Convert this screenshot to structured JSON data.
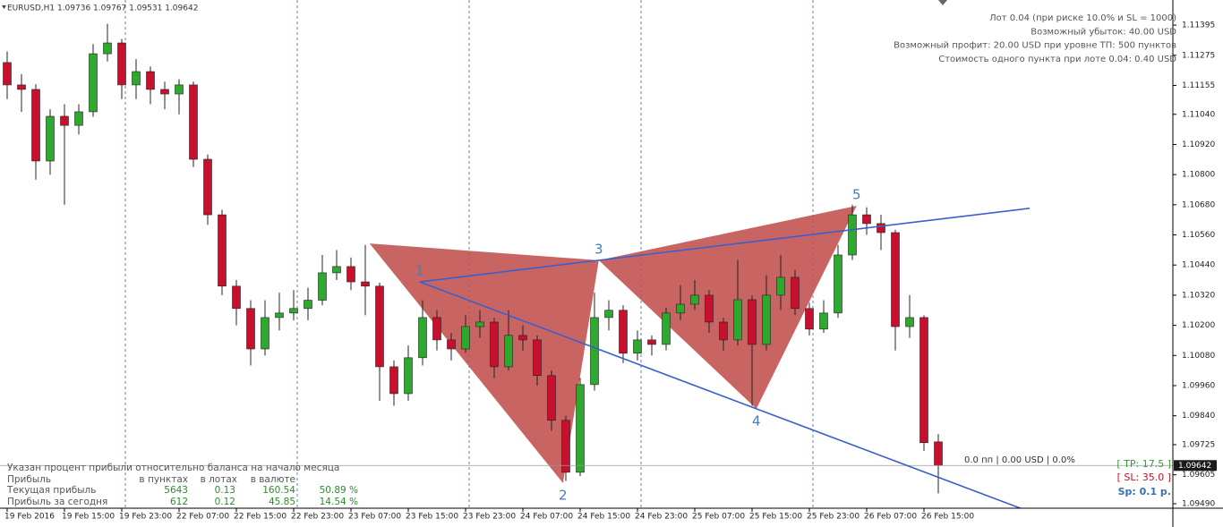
{
  "header": "EURUSD,H1  1.09736 1.09767 1.09531 1.09642",
  "info": [
    "Лот 0.04 (при риске 10.0% и SL = 1000)",
    "Возможный убыток: 40.00 USD",
    "Возможный профит: 20.00 USD при уровне ТП: 500 пунктов",
    "Стоимость одного пункта при лоте 0.04: 0.40 USD"
  ],
  "position_status": "0.0 пп | 0.00 USD | 0.0%",
  "tp_label": "[ TP: 17.5 ]",
  "sl_label": "[ SL: 35.0 ]",
  "spread_label": "Sp: 0.1 p.",
  "table": {
    "note": "Указан процент прибыли относительно баланса на начало месяца",
    "header": [
      "Прибыль",
      "в пунктах",
      "в лотах",
      "в валюте"
    ],
    "rows": [
      [
        "Текущая прибыль",
        5643,
        0.13,
        160.54,
        "50.89 %"
      ],
      [
        "Прибыль за сегодня",
        612,
        0.12,
        45.85,
        "14.54 %"
      ]
    ]
  },
  "chart_data": {
    "type": "candlestick",
    "up_color": "#2ea82e",
    "down_color": "#c8102e",
    "ylim": [
      1.09472,
      1.11495
    ],
    "yticks": [
      1.11395,
      1.11275,
      1.11155,
      {
        "value": 1.1104,
        "label": "1.11040"
      },
      {
        "value": 1.1092,
        "label": "1.10920"
      },
      {
        "value": 1.108,
        "label": "1.10800"
      },
      {
        "value": 1.1068,
        "label": "1.10680"
      },
      {
        "value": 1.1056,
        "label": "1.10560"
      },
      {
        "value": 1.1044,
        "label": "1.10440"
      },
      {
        "value": 1.1032,
        "label": "1.10320"
      },
      {
        "value": 1.102,
        "label": "1.10200"
      },
      {
        "value": 1.1008,
        "label": "1.10080"
      },
      {
        "value": 1.0996,
        "label": "1.09960"
      },
      {
        "value": 1.0984,
        "label": "1.09840"
      },
      1.09725,
      1.09605,
      {
        "value": 1.0949,
        "label": "1.09490"
      }
    ],
    "xticks": [
      {
        "value": 0,
        "label": "19 Feb 2016"
      },
      {
        "value": 4,
        "label": "19 Feb 15:00"
      },
      {
        "value": 8,
        "label": "19 Feb 23:00"
      },
      {
        "value": 12,
        "label": "22 Feb 07:00"
      },
      {
        "value": 16,
        "label": "22 Feb 15:00"
      },
      {
        "value": 20,
        "label": "22 Feb 23:00"
      },
      {
        "value": 24,
        "label": "23 Feb 07:00"
      },
      {
        "value": 28,
        "label": "23 Feb 15:00"
      },
      {
        "value": 32,
        "label": "23 Feb 23:00"
      },
      {
        "value": 36,
        "label": "24 Feb 07:00"
      },
      {
        "value": 40,
        "label": "24 Feb 15:00"
      },
      {
        "value": 44,
        "label": "24 Feb 23:00"
      },
      {
        "value": 48,
        "label": "25 Feb 07:00"
      },
      {
        "value": 52,
        "label": "25 Feb 15:00"
      },
      {
        "value": 56,
        "label": "25 Feb 23:00"
      },
      {
        "value": 60,
        "label": "26 Feb 07:00"
      },
      {
        "value": 64,
        "label": "26 Feb 15:00"
      }
    ],
    "last_price": 1.09642,
    "candles": [
      [
        1.11246,
        1.1129,
        1.111,
        1.11157
      ],
      [
        1.11157,
        1.112,
        1.1105,
        1.11139
      ],
      [
        1.11139,
        1.1116,
        1.1078,
        1.10854
      ],
      [
        1.10854,
        1.1106,
        1.108,
        1.11032
      ],
      [
        1.11032,
        1.1108,
        1.1068,
        1.10996
      ],
      [
        1.10996,
        1.1108,
        1.1096,
        1.1105
      ],
      [
        1.1105,
        1.1132,
        1.1103,
        1.11281
      ],
      [
        1.11281,
        1.114,
        1.1125,
        1.11324
      ],
      [
        1.11324,
        1.1134,
        1.111,
        1.11157
      ],
      [
        1.11157,
        1.1126,
        1.111,
        1.1121
      ],
      [
        1.1121,
        1.1123,
        1.1108,
        1.11139
      ],
      [
        1.11139,
        1.1117,
        1.1106,
        1.11121
      ],
      [
        1.11121,
        1.1118,
        1.1104,
        1.11157
      ],
      [
        1.11157,
        1.1117,
        1.1083,
        1.10861
      ],
      [
        1.10861,
        1.1088,
        1.106,
        1.1064
      ],
      [
        1.1064,
        1.1066,
        1.1032,
        1.10356
      ],
      [
        1.10356,
        1.1038,
        1.102,
        1.10267
      ],
      [
        1.10267,
        1.103,
        1.1004,
        1.10106
      ],
      [
        1.10106,
        1.103,
        1.1008,
        1.10231
      ],
      [
        1.10231,
        1.1033,
        1.1018,
        1.10249
      ],
      [
        1.10249,
        1.1034,
        1.1022,
        1.10267
      ],
      [
        1.10267,
        1.1035,
        1.1022,
        1.103
      ],
      [
        1.103,
        1.1048,
        1.1028,
        1.10409
      ],
      [
        1.10409,
        1.105,
        1.1038,
        1.10434
      ],
      [
        1.10434,
        1.1047,
        1.1034,
        1.10373
      ],
      [
        1.10373,
        1.1052,
        1.1024,
        1.10356
      ],
      [
        1.10356,
        1.1037,
        1.099,
        1.10035
      ],
      [
        1.10035,
        1.1006,
        1.0988,
        1.09928
      ],
      [
        1.09928,
        1.1012,
        1.099,
        1.10071
      ],
      [
        1.10071,
        1.103,
        1.1004,
        1.10231
      ],
      [
        1.10231,
        1.1026,
        1.101,
        1.10142
      ],
      [
        1.10142,
        1.1017,
        1.1006,
        1.10106
      ],
      [
        1.10106,
        1.1024,
        1.1009,
        1.10195
      ],
      [
        1.10195,
        1.1026,
        1.1015,
        1.10213
      ],
      [
        1.10213,
        1.1023,
        1.0999,
        1.10035
      ],
      [
        1.10035,
        1.1026,
        1.1002,
        1.1016
      ],
      [
        1.1016,
        1.102,
        1.101,
        1.10142
      ],
      [
        1.10142,
        1.1016,
        1.0996,
        1.1
      ],
      [
        1.1,
        1.1002,
        1.0978,
        1.09822
      ],
      [
        1.09822,
        1.0984,
        1.0958,
        1.09615
      ],
      [
        1.09615,
        1.0999,
        1.096,
        1.09964
      ],
      [
        1.09964,
        1.1033,
        1.0994,
        1.10231
      ],
      [
        1.10231,
        1.103,
        1.1018,
        1.1026
      ],
      [
        1.1026,
        1.1028,
        1.1005,
        1.10089
      ],
      [
        1.10089,
        1.1018,
        1.1006,
        1.10142
      ],
      [
        1.10142,
        1.1016,
        1.1008,
        1.10124
      ],
      [
        1.10124,
        1.1027,
        1.101,
        1.10249
      ],
      [
        1.10249,
        1.1036,
        1.1022,
        1.10284
      ],
      [
        1.10284,
        1.1038,
        1.1026,
        1.1032
      ],
      [
        1.1032,
        1.1034,
        1.1017,
        1.10213
      ],
      [
        1.10213,
        1.1023,
        1.101,
        1.10142
      ],
      [
        1.10142,
        1.1046,
        1.1012,
        1.10302
      ],
      [
        1.10302,
        1.1032,
        1.0988,
        1.10124
      ],
      [
        1.10124,
        1.104,
        1.101,
        1.1032
      ],
      [
        1.1032,
        1.1048,
        1.1026,
        1.10391
      ],
      [
        1.10391,
        1.1042,
        1.1024,
        1.10267
      ],
      [
        1.10267,
        1.1029,
        1.1016,
        1.10185
      ],
      [
        1.10185,
        1.103,
        1.1017,
        1.10249
      ],
      [
        1.10249,
        1.1052,
        1.1023,
        1.1048
      ],
      [
        1.1048,
        1.1068,
        1.1046,
        1.1064
      ],
      [
        1.1064,
        1.1067,
        1.1056,
        1.10605
      ],
      [
        1.10605,
        1.1064,
        1.105,
        1.10569
      ],
      [
        1.10569,
        1.1058,
        1.101,
        1.10195
      ],
      [
        1.10195,
        1.1032,
        1.1015,
        1.10231
      ],
      [
        1.10231,
        1.1024,
        1.097,
        1.09733
      ],
      [
        1.09736,
        1.09767,
        1.09531,
        1.09642
      ]
    ],
    "pattern_color": "#c0504d",
    "line_color": "#3a5fcd",
    "pattern": [
      {
        "x": 25.3,
        "y": 1.10526
      },
      {
        "label": "1",
        "x": 28.8,
        "y": 1.10373
      },
      {
        "label": "2",
        "x": 38.8,
        "y": 1.09572
      },
      {
        "label": "3",
        "x": 41.3,
        "y": 1.10459
      },
      {
        "label": "4",
        "x": 52.3,
        "y": 1.09868
      },
      {
        "label": "5",
        "x": 59.3,
        "y": 1.10676
      }
    ]
  }
}
